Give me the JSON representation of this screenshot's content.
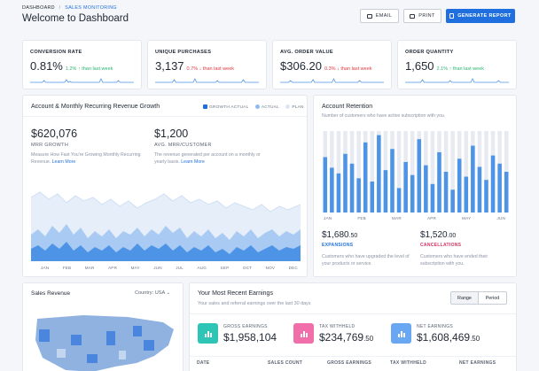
{
  "breadcrumb": {
    "root": "DASHBOARD",
    "separator": "/",
    "current": "SALES MONITORING"
  },
  "page_title": "Welcome to Dashboard",
  "toolbar": {
    "email_label": "EMAIL",
    "print_label": "PRINT",
    "generate_label": "GENERATE REPORT"
  },
  "kpis": [
    {
      "title": "CONVERSION RATE",
      "value": "0.81%",
      "delta": "1.2% ↑ than last week",
      "delta_color": "#2bb673"
    },
    {
      "title": "UNIQUE PURCHASES",
      "value": "3,137",
      "delta": "0.7% ↓ than last week",
      "delta_color": "#e0383e"
    },
    {
      "title": "AVG. ORDER VALUE",
      "value": "$306.20",
      "delta": "0.3% ↓ than last week",
      "delta_color": "#e0383e"
    },
    {
      "title": "ORDER QUANTITY",
      "value": "1,650",
      "delta": "2.1% ↑ than last week",
      "delta_color": "#2bb673"
    }
  ],
  "revenue_growth": {
    "title": "Account & Monthly Recurring Revenue Growth",
    "legend": [
      "GROWTH ACTUAL",
      "ACTUAL",
      "PLAN"
    ],
    "mrr_value": "$620,076",
    "mrr_label": "MRR GROWTH",
    "mrr_desc": "Measure How Fast You're Growing Monthly Recurring Revenue.",
    "mrr_link": "Learn More",
    "avg_value": "$1,200",
    "avg_label": "AVG. MRR/CUSTOMER",
    "avg_desc": "The revenue generated per account on a monthly or yearly basis.",
    "avg_link": "Learn More",
    "months": [
      "JAN",
      "FEB",
      "MAR",
      "APR",
      "MAY",
      "JUN",
      "JUL",
      "AUG",
      "SEP",
      "OCT",
      "NOV",
      "DEC"
    ]
  },
  "retention": {
    "title": "Account Retention",
    "subtitle": "Number of customers who have active subscription with you.",
    "months": [
      "JAN",
      "FEB",
      "MAR",
      "APR",
      "MAY",
      "JUN"
    ],
    "expansions_value": "$1,680",
    "expansions_cents": ".50",
    "expansions_label": "EXPANSIONS",
    "expansions_desc": "Customers who have upgraded the level of your products or service.",
    "cancellations_value": "$1,520",
    "cancellations_cents": ".00",
    "cancellations_label": "CANCELLATIONS",
    "cancellations_desc": "Customers who have ended their subscription with you.",
    "bars": [
      0.68,
      0.55,
      0.48,
      0.72,
      0.6,
      0.42,
      0.86,
      0.38,
      0.95,
      0.52,
      0.78,
      0.3,
      0.62,
      0.46,
      0.9,
      0.58,
      0.35,
      0.74,
      0.5,
      0.28,
      0.66,
      0.44,
      0.82,
      0.56,
      0.4,
      0.7,
      0.6,
      0.5
    ]
  },
  "sales_revenue": {
    "title": "Sales Revenue",
    "country_label": "Country:",
    "country_value": "USA"
  },
  "earnings": {
    "title": "Your Most Recent Earnings",
    "subtitle": "Your sales and referral earnings over the last 30 days",
    "toggle": [
      "Range",
      "Period"
    ],
    "items": [
      {
        "label": "GROSS EARNINGS",
        "value": "$1,958,104",
        "cents": "",
        "color": "#2ec4b6"
      },
      {
        "label": "TAX WITHHELD",
        "value": "$234,769",
        "cents": ".50",
        "color": "#f06eaa"
      },
      {
        "label": "NET EARNINGS",
        "value": "$1,608,469",
        "cents": ".50",
        "color": "#69a7f2"
      }
    ],
    "columns": [
      "DATE",
      "SALES COUNT",
      "GROSS EARNINGS",
      "TAX WITHHELD",
      "NET EARNINGS"
    ]
  },
  "colors": {
    "accent": "#1f6fde",
    "bar_dark": "#4d93e6",
    "bar_light": "#e7ebf1"
  }
}
